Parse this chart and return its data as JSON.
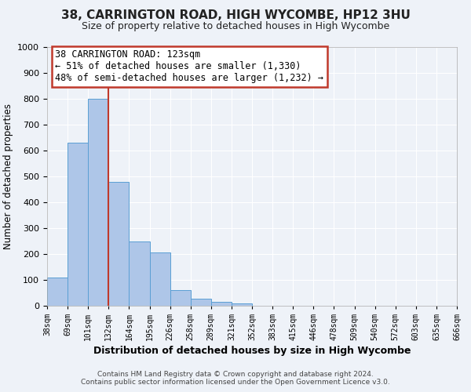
{
  "title": "38, CARRINGTON ROAD, HIGH WYCOMBE, HP12 3HU",
  "subtitle": "Size of property relative to detached houses in High Wycombe",
  "xlabel": "Distribution of detached houses by size in High Wycombe",
  "ylabel": "Number of detached properties",
  "bar_values": [
    110,
    630,
    800,
    480,
    250,
    205,
    62,
    28,
    15,
    10,
    0,
    0,
    0,
    0,
    0,
    0,
    0,
    0,
    0,
    0
  ],
  "bar_labels": [
    "38sqm",
    "69sqm",
    "101sqm",
    "132sqm",
    "164sqm",
    "195sqm",
    "226sqm",
    "258sqm",
    "289sqm",
    "321sqm",
    "352sqm",
    "383sqm",
    "415sqm",
    "446sqm",
    "478sqm",
    "509sqm",
    "540sqm",
    "572sqm",
    "603sqm",
    "635sqm",
    "666sqm"
  ],
  "ylim": [
    0,
    1000
  ],
  "yticks": [
    0,
    100,
    200,
    300,
    400,
    500,
    600,
    700,
    800,
    900,
    1000
  ],
  "bar_color": "#aec6e8",
  "bar_edge_color": "#5a9fd4",
  "vline_x": 3,
  "vline_color": "#c0392b",
  "annotation_title": "38 CARRINGTON ROAD: 123sqm",
  "annotation_line1": "← 51% of detached houses are smaller (1,330)",
  "annotation_line2": "48% of semi-detached houses are larger (1,232) →",
  "annotation_box_color": "#ffffff",
  "annotation_box_edge": "#c0392b",
  "footer1": "Contains HM Land Registry data © Crown copyright and database right 2024.",
  "footer2": "Contains public sector information licensed under the Open Government Licence v3.0.",
  "background_color": "#eef2f8",
  "grid_color": "#ffffff"
}
